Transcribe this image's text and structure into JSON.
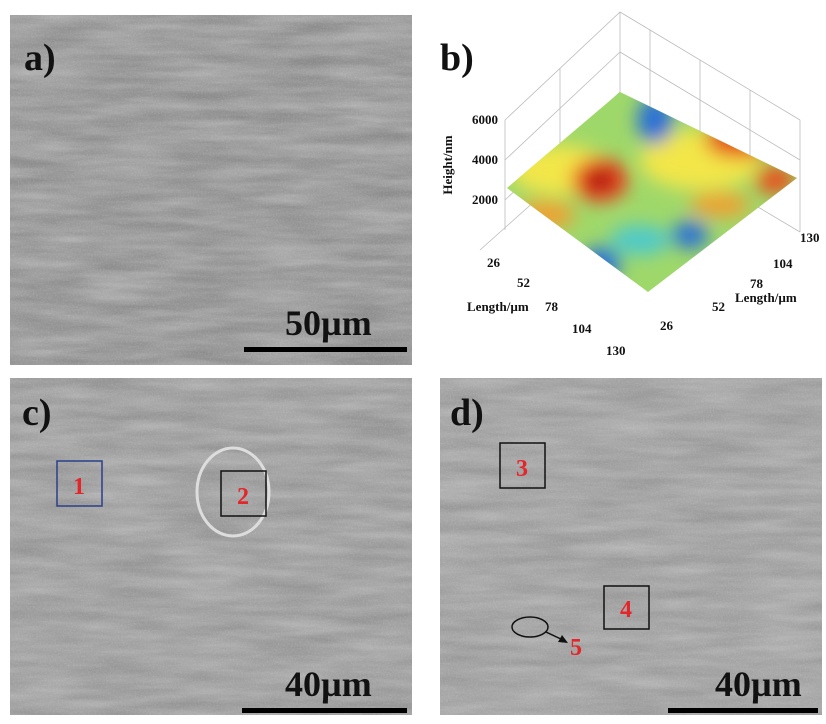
{
  "panels": [
    {
      "label": "a)",
      "scale_bar": "50µm"
    },
    {
      "label": "b)",
      "plot": {
        "z_label": "Height/nm",
        "z_ticks": [
          6000,
          4000,
          2000
        ],
        "x_label": "Length/µm",
        "x_ticks": [
          26,
          52,
          78,
          104,
          130
        ],
        "y_label": "Length/µm",
        "y_ticks": [
          26,
          52,
          78,
          104,
          130
        ]
      }
    },
    {
      "label": "c)",
      "scale_bar": "40µm",
      "markers": [
        "1",
        "2"
      ]
    },
    {
      "label": "d)",
      "scale_bar": "40µm",
      "markers": [
        "3",
        "4",
        "5"
      ]
    }
  ]
}
